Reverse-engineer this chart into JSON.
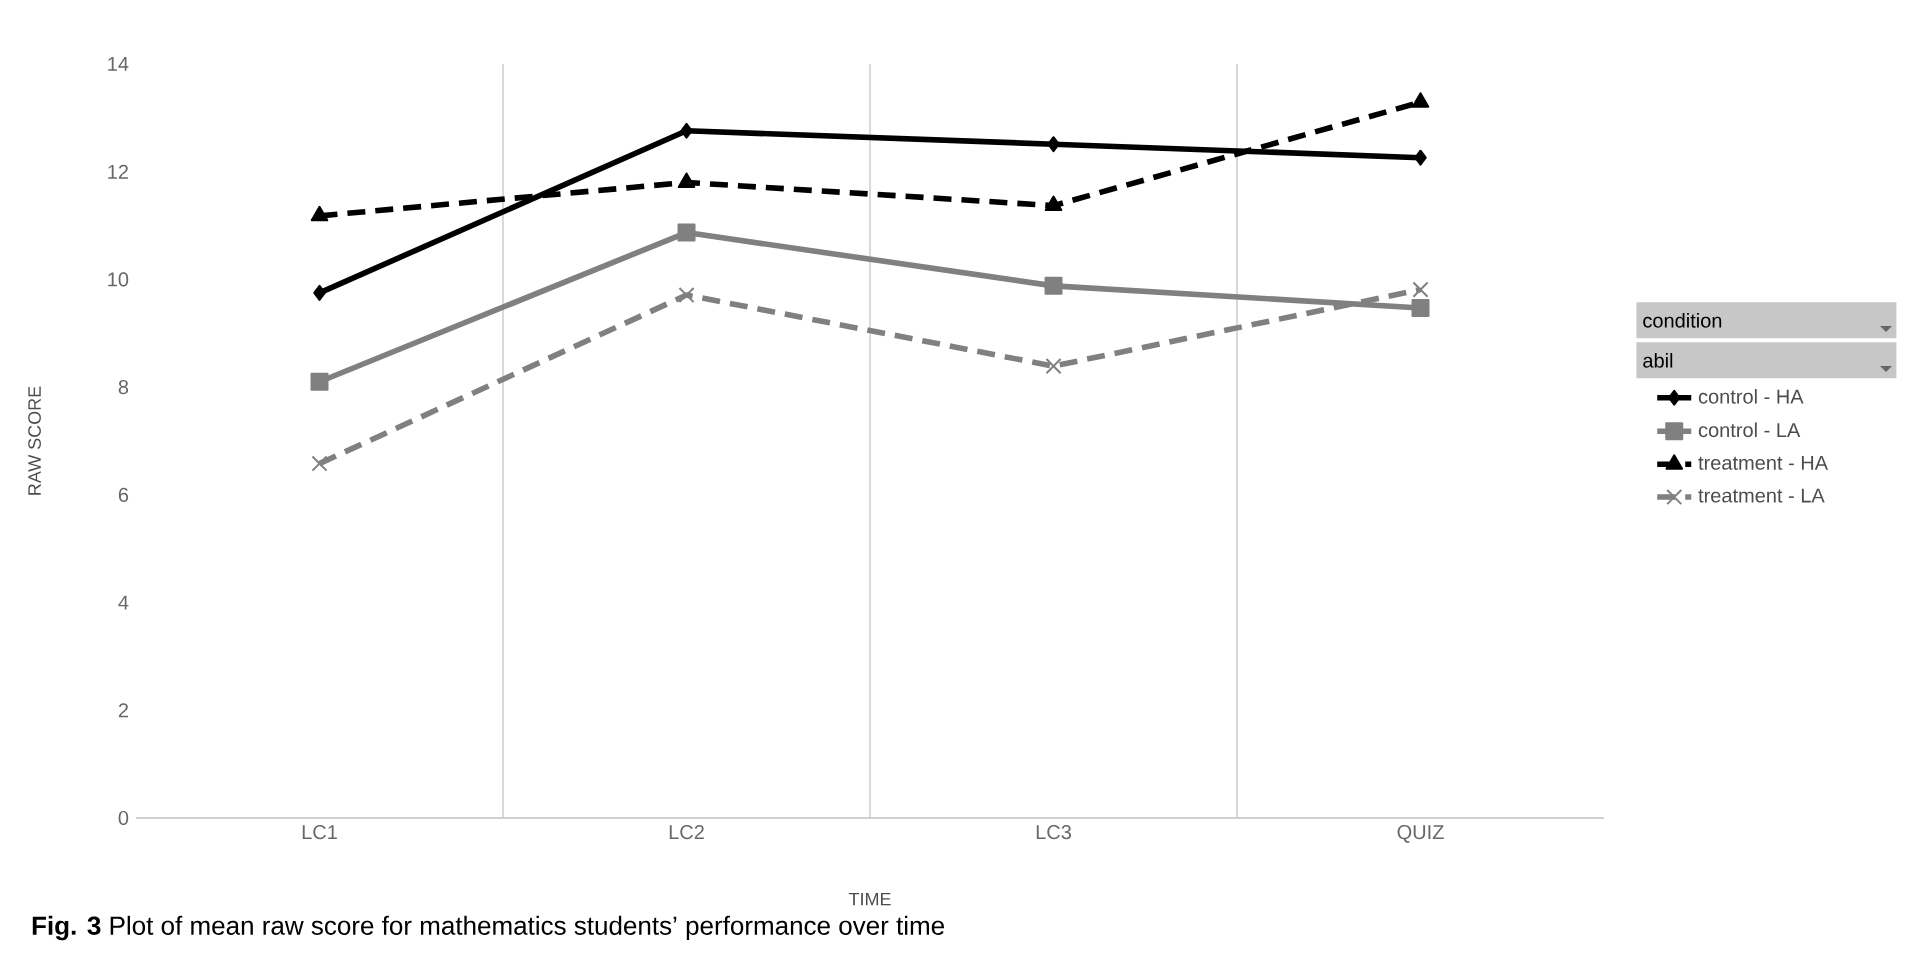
{
  "chart_data": {
    "type": "line",
    "xlabel": "TIME",
    "ylabel": "RAW SCORE",
    "legend_title": "condition",
    "annotations": [
      "abil",
      "**Fig. 3** Plot of mean raw score for mathematics students’ performance over time"
    ],
    "categories": [
      "LC1",
      "LC2",
      "LC3",
      "QUIZ"
    ],
    "series": [
      {
        "name": "control - HA",
        "color": "#000000",
        "marker": "diamond",
        "line_style": "solid",
        "values": [
          9.75,
          12.76,
          12.51,
          12.26
        ]
      },
      {
        "name": "control - LA",
        "color": "#808080",
        "marker": "square",
        "line_style": "solid",
        "values": [
          8.1,
          10.87,
          9.88,
          9.47
        ]
      },
      {
        "name": "treatment - HA",
        "color": "#000000",
        "marker": "triangle",
        "line_style": "dashed",
        "values": [
          11.18,
          11.8,
          11.37,
          13.29
        ]
      },
      {
        "name": "treatment - LA",
        "color": "#808080",
        "marker": "cross",
        "line_style": "dashed",
        "values": [
          6.58,
          9.71,
          8.39,
          9.81
        ]
      }
    ],
    "ylim": [
      0,
      14
    ],
    "yticks": [
      0,
      2,
      4,
      6,
      8,
      10,
      12,
      14
    ],
    "grid": "x",
    "legend": "right"
  }
}
